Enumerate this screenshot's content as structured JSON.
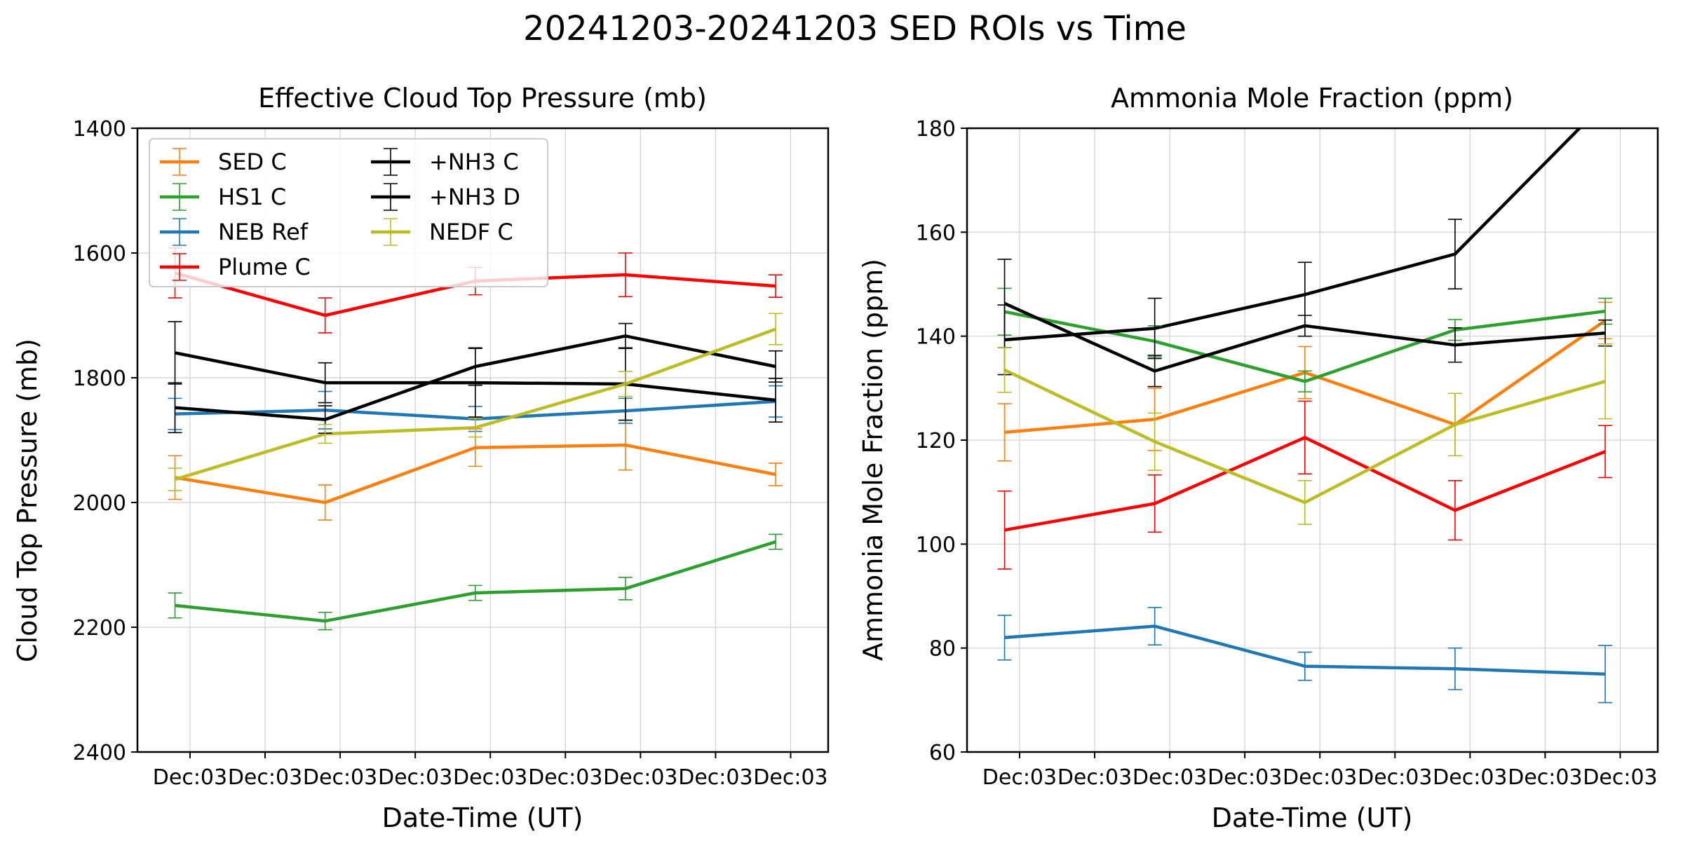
{
  "figure": {
    "suptitle": "20241203-20241203 SED ROIs vs Time"
  },
  "colors": {
    "SED C": "#ff7f0e",
    "HS1 C": "#2ca02c",
    "NEB Ref": "#1f77b4",
    "Plume C": "#ff0000",
    "+NH3 C": "#000000",
    "+NH3 D": "#000000",
    "NEDF C": "#bcbd22"
  },
  "chart_data": [
    {
      "type": "line",
      "title": "Effective Cloud Top Pressure (mb)",
      "xlabel": "Date-Time (UT)",
      "ylabel": "Cloud Top Pressure (mb)",
      "ylim": [
        2400,
        1400
      ],
      "y_inverted": true,
      "yticks": [
        1400,
        1600,
        1800,
        2000,
        2200,
        2400
      ],
      "xlim": [
        -0.35,
        4.25
      ],
      "xticks": [
        0,
        0.5,
        1,
        1.5,
        2,
        2.5,
        3,
        3.5,
        4
      ],
      "xtick_labels": [
        "Dec:03",
        "Dec:03",
        "Dec:03",
        "Dec:03",
        "Dec:03",
        "Dec:03",
        "Dec:03",
        "Dec:03",
        "Dec:03"
      ],
      "grid": true,
      "legend": {
        "position": "top-left",
        "columns": 2,
        "entries": [
          "SED C",
          "HS1 C",
          "NEB Ref",
          "Plume C",
          " +NH3 C",
          " +NH3 D",
          "NEDF C"
        ]
      },
      "series": [
        {
          "name": "SED C",
          "x": [
            -0.1,
            0.9,
            1.9,
            2.9,
            3.9
          ],
          "values": [
            1960,
            2000,
            1912,
            1908,
            1955
          ],
          "err": [
            35,
            28,
            30,
            40,
            18
          ]
        },
        {
          "name": "HS1 C",
          "x": [
            -0.1,
            0.9,
            1.9,
            2.9,
            3.9
          ],
          "values": [
            2165,
            2190,
            2145,
            2138,
            2063
          ],
          "err": [
            20,
            14,
            12,
            18,
            12
          ]
        },
        {
          "name": "NEB Ref",
          "x": [
            -0.1,
            0.9,
            1.9,
            2.9,
            3.9
          ],
          "values": [
            1858,
            1852,
            1866,
            1853,
            1838
          ],
          "err": [
            25,
            30,
            20,
            20,
            25
          ]
        },
        {
          "name": "Plume C",
          "x": [
            -0.1,
            0.9,
            1.9,
            2.9,
            3.9
          ],
          "values": [
            1632,
            1700,
            1645,
            1635,
            1653
          ],
          "err": [
            40,
            28,
            22,
            35,
            18
          ]
        },
        {
          "name": "+NH3 C",
          "x": [
            -0.1,
            0.9,
            1.9,
            2.9,
            3.9
          ],
          "values": [
            1760,
            1808,
            1808,
            1810,
            1836
          ],
          "err": [
            50,
            32,
            55,
            58,
            35
          ]
        },
        {
          "name": "+NH3 D",
          "x": [
            -0.1,
            0.9,
            1.9,
            2.9,
            3.9
          ],
          "values": [
            1848,
            1867,
            1782,
            1733,
            1782
          ],
          "err": [
            40,
            22,
            30,
            20,
            25
          ]
        },
        {
          "name": "NEDF C",
          "x": [
            -0.1,
            0.9,
            1.9,
            2.9,
            3.9
          ],
          "values": [
            1963,
            1890,
            1880,
            1810,
            1722
          ],
          "err": [
            18,
            15,
            15,
            20,
            25
          ]
        }
      ]
    },
    {
      "type": "line",
      "title": "Ammonia Mole Fraction (ppm)",
      "xlabel": "Date-Time (UT)",
      "ylabel": "Ammonia Mole Fraction (ppm)",
      "ylim": [
        60,
        180
      ],
      "yticks": [
        60,
        80,
        100,
        120,
        140,
        160,
        180
      ],
      "xlim": [
        -0.35,
        4.25
      ],
      "xticks": [
        0,
        0.5,
        1,
        1.5,
        2,
        2.5,
        3,
        3.5,
        4
      ],
      "xtick_labels": [
        "Dec:03",
        "Dec:03",
        "Dec:03",
        "Dec:03",
        "Dec:03",
        "Dec:03",
        "Dec:03",
        "Dec:03",
        "Dec:03"
      ],
      "grid": true,
      "series": [
        {
          "name": "SED C",
          "x": [
            -0.1,
            0.9,
            1.9,
            2.9,
            3.9
          ],
          "values": [
            121.5,
            124,
            133,
            123,
            143
          ],
          "err": [
            5.5,
            6,
            5,
            6,
            3.5
          ]
        },
        {
          "name": "HS1 C",
          "x": [
            -0.1,
            0.9,
            1.9,
            2.9,
            3.9
          ],
          "values": [
            144.7,
            139,
            131.3,
            141.2,
            144.8
          ],
          "err": [
            4.5,
            3,
            2,
            2,
            2.5
          ]
        },
        {
          "name": "NEB Ref",
          "x": [
            -0.1,
            0.9,
            1.9,
            2.9,
            3.9
          ],
          "values": [
            82,
            84.2,
            76.5,
            76,
            75
          ],
          "err": [
            4.3,
            3.6,
            2.7,
            4,
            5.5
          ]
        },
        {
          "name": "Plume C",
          "x": [
            -0.1,
            0.9,
            1.9,
            2.9,
            3.9
          ],
          "values": [
            102.7,
            107.8,
            120.5,
            106.5,
            117.8
          ],
          "err": [
            7.5,
            5.5,
            7,
            5.7,
            5
          ]
        },
        {
          "name": "+NH3 C",
          "x": [
            -0.1,
            0.9,
            1.9,
            2.9,
            3.9
          ],
          "values": [
            146.3,
            133.3,
            142,
            138.3,
            140.6
          ],
          "err": [
            8.5,
            3,
            2,
            3.3,
            2.5
          ]
        },
        {
          "name": "+NH3 D",
          "x": [
            -0.1,
            0.9,
            1.9,
            2.9,
            3.9,
            4.5
          ],
          "values": [
            139.3,
            141.5,
            148,
            155.8,
            185,
            195
          ],
          "err": [
            6.7,
            5.8,
            6.2,
            6.7,
            null,
            null
          ]
        },
        {
          "name": "NEDF C",
          "x": [
            -0.1,
            0.9,
            1.9,
            2.9,
            3.9
          ],
          "values": [
            133.5,
            119.7,
            108,
            123,
            131.3
          ],
          "err": [
            4.3,
            5.5,
            4.2,
            6,
            7.2
          ]
        }
      ]
    }
  ]
}
